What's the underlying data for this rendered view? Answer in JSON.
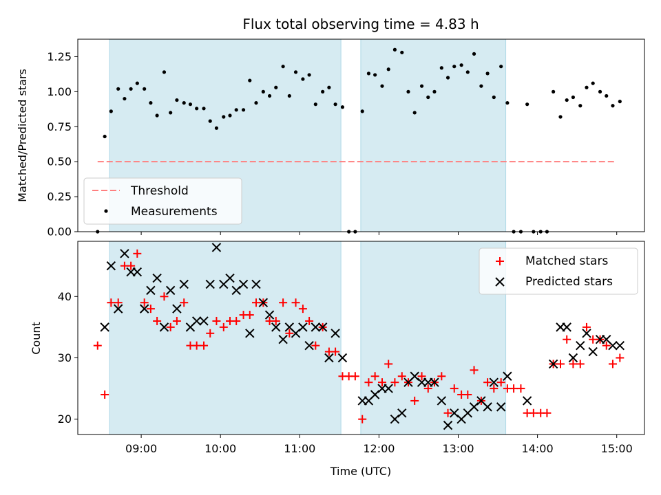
{
  "chart_data": [
    {
      "type": "scatter",
      "title": "Flux total observing time = 4.83 h",
      "xlabel": "",
      "ylabel": "Matched/Predicted stars",
      "xlim": [
        8.2,
        15.35
      ],
      "ylim": [
        0.0,
        1.375
      ],
      "yticks": [
        0.0,
        0.25,
        0.5,
        0.75,
        1.0,
        1.25
      ],
      "ytick_labels": [
        "0.00",
        "0.25",
        "0.50",
        "0.75",
        "1.00",
        "1.25"
      ],
      "xticks": [
        9,
        10,
        11,
        12,
        13,
        14,
        15
      ],
      "shaded_intervals": [
        [
          8.6,
          11.52
        ],
        [
          11.77,
          13.6
        ]
      ],
      "shade_color": "#add8e6",
      "threshold": {
        "label": "Threshold",
        "value": 0.5,
        "x_range": [
          8.45,
          15.0
        ],
        "color": "#ff7f7f"
      },
      "legend": {
        "placement": "lower-left",
        "entries": [
          "Threshold",
          "Measurements"
        ]
      },
      "series": [
        {
          "name": "Measurements",
          "color": "#000000",
          "x": [
            8.45,
            8.54,
            8.62,
            8.71,
            8.79,
            8.87,
            8.95,
            9.04,
            9.12,
            9.2,
            9.29,
            9.37,
            9.45,
            9.54,
            9.62,
            9.7,
            9.79,
            9.87,
            9.95,
            10.04,
            10.12,
            10.2,
            10.29,
            10.37,
            10.45,
            10.54,
            10.62,
            10.7,
            10.79,
            10.87,
            10.95,
            11.04,
            11.12,
            11.2,
            11.29,
            11.37,
            11.45,
            11.54,
            11.62,
            11.7,
            11.79,
            11.87,
            11.95,
            12.04,
            12.12,
            12.2,
            12.29,
            12.37,
            12.45,
            12.54,
            12.62,
            12.7,
            12.79,
            12.87,
            12.95,
            13.04,
            13.12,
            13.2,
            13.29,
            13.37,
            13.45,
            13.54,
            13.62,
            13.7,
            13.79,
            13.87,
            13.95,
            14.04,
            14.12,
            14.2,
            14.29,
            14.37,
            14.45,
            14.54,
            14.62,
            14.7,
            14.79,
            14.87,
            14.95,
            15.04
          ],
          "values": [
            0.0,
            0.68,
            0.86,
            1.02,
            0.95,
            1.02,
            1.06,
            1.02,
            0.92,
            0.83,
            1.14,
            0.85,
            0.94,
            0.92,
            0.91,
            0.88,
            0.88,
            0.79,
            0.74,
            0.82,
            0.83,
            0.87,
            0.87,
            1.08,
            0.92,
            1.0,
            0.97,
            1.03,
            1.18,
            0.97,
            1.14,
            1.09,
            1.12,
            0.91,
            1.0,
            1.03,
            0.91,
            0.89,
            0.0,
            0.0,
            0.86,
            1.13,
            1.12,
            1.04,
            1.16,
            1.3,
            1.28,
            1.0,
            0.85,
            1.04,
            0.96,
            1.0,
            1.17,
            1.1,
            1.18,
            1.19,
            1.14,
            1.27,
            1.04,
            1.13,
            0.96,
            1.18,
            0.92,
            0.0,
            0.0,
            0.91,
            0.0,
            0.0,
            0.0,
            1.0,
            0.82,
            0.94,
            0.96,
            0.9,
            1.03,
            1.06,
            1.0,
            0.97,
            0.9,
            0.93
          ]
        }
      ]
    },
    {
      "type": "scatter",
      "title": "",
      "xlabel": "Time (UTC)",
      "ylabel": "Count",
      "xlim": [
        8.2,
        15.35
      ],
      "ylim": [
        17.5,
        49.0
      ],
      "yticks": [
        20,
        30,
        40
      ],
      "ytick_labels": [
        "20",
        "30",
        "40"
      ],
      "xticks": [
        9,
        10,
        11,
        12,
        13,
        14,
        15
      ],
      "xtick_labels": [
        "09:00",
        "10:00",
        "11:00",
        "12:00",
        "13:00",
        "14:00",
        "15:00"
      ],
      "shaded_intervals": [
        [
          8.6,
          11.52
        ],
        [
          11.77,
          13.6
        ]
      ],
      "shade_color": "#add8e6",
      "legend": {
        "placement": "top-right",
        "entries": [
          "Matched stars",
          "Predicted stars"
        ]
      },
      "series": [
        {
          "name": "Matched stars",
          "marker": "plus",
          "color": "#ff0000",
          "x": [
            8.45,
            8.54,
            8.62,
            8.71,
            8.79,
            8.87,
            8.95,
            9.04,
            9.12,
            9.2,
            9.29,
            9.37,
            9.45,
            9.54,
            9.62,
            9.7,
            9.79,
            9.87,
            9.95,
            10.04,
            10.12,
            10.2,
            10.29,
            10.37,
            10.45,
            10.54,
            10.62,
            10.7,
            10.79,
            10.87,
            10.95,
            11.04,
            11.12,
            11.2,
            11.29,
            11.37,
            11.45,
            11.54,
            11.62,
            11.7,
            11.79,
            11.87,
            11.95,
            12.04,
            12.12,
            12.2,
            12.29,
            12.37,
            12.45,
            12.54,
            12.62,
            12.7,
            12.79,
            12.87,
            12.95,
            13.04,
            13.12,
            13.2,
            13.29,
            13.37,
            13.45,
            13.54,
            13.62,
            13.7,
            13.79,
            13.87,
            13.95,
            14.04,
            14.12,
            14.2,
            14.29,
            14.37,
            14.45,
            14.54,
            14.62,
            14.7,
            14.79,
            14.87,
            14.95,
            15.04
          ],
          "values": [
            32,
            24,
            39,
            39,
            45,
            45,
            47,
            39,
            38,
            36,
            40,
            35,
            36,
            39,
            32,
            32,
            32,
            34,
            36,
            35,
            36,
            36,
            37,
            37,
            39,
            39,
            36,
            36,
            39,
            34,
            39,
            38,
            36,
            32,
            35,
            31,
            31,
            27,
            27,
            27,
            20,
            26,
            27,
            26,
            29,
            26,
            27,
            26,
            23,
            27,
            25,
            26,
            27,
            21,
            25,
            24,
            24,
            28,
            23,
            26,
            25,
            26,
            25,
            25,
            25,
            21,
            21,
            21,
            21,
            29,
            29,
            33,
            29,
            29,
            35,
            33,
            33,
            32,
            29,
            30
          ]
        },
        {
          "name": "Predicted stars",
          "marker": "x",
          "color": "#000000",
          "x": [
            8.54,
            8.62,
            8.71,
            8.79,
            8.87,
            8.95,
            9.04,
            9.12,
            9.2,
            9.29,
            9.37,
            9.45,
            9.54,
            9.62,
            9.7,
            9.79,
            9.87,
            9.95,
            10.04,
            10.12,
            10.2,
            10.29,
            10.37,
            10.45,
            10.54,
            10.62,
            10.7,
            10.79,
            10.87,
            10.95,
            11.04,
            11.12,
            11.2,
            11.29,
            11.37,
            11.45,
            11.54,
            11.79,
            11.87,
            11.95,
            12.04,
            12.12,
            12.2,
            12.29,
            12.37,
            12.45,
            12.54,
            12.62,
            12.7,
            12.79,
            12.87,
            12.95,
            13.04,
            13.12,
            13.2,
            13.29,
            13.37,
            13.45,
            13.54,
            13.62,
            13.87,
            14.2,
            14.29,
            14.37,
            14.45,
            14.54,
            14.62,
            14.7,
            14.79,
            14.87,
            14.95,
            15.04
          ],
          "values": [
            35,
            45,
            38,
            47,
            44,
            44,
            38,
            41,
            43,
            35,
            41,
            38,
            42,
            35,
            36,
            36,
            42,
            48,
            42,
            43,
            41,
            42,
            34,
            42,
            39,
            37,
            35,
            33,
            35,
            34,
            35,
            32,
            35,
            35,
            30,
            34,
            30,
            23,
            23,
            24,
            25,
            25,
            20,
            21,
            26,
            27,
            26,
            26,
            26,
            23,
            19,
            21,
            20,
            21,
            22,
            23,
            22,
            26,
            22,
            27,
            23,
            29,
            35,
            35,
            30,
            32,
            34,
            31,
            33,
            33,
            32,
            32
          ]
        }
      ]
    }
  ]
}
